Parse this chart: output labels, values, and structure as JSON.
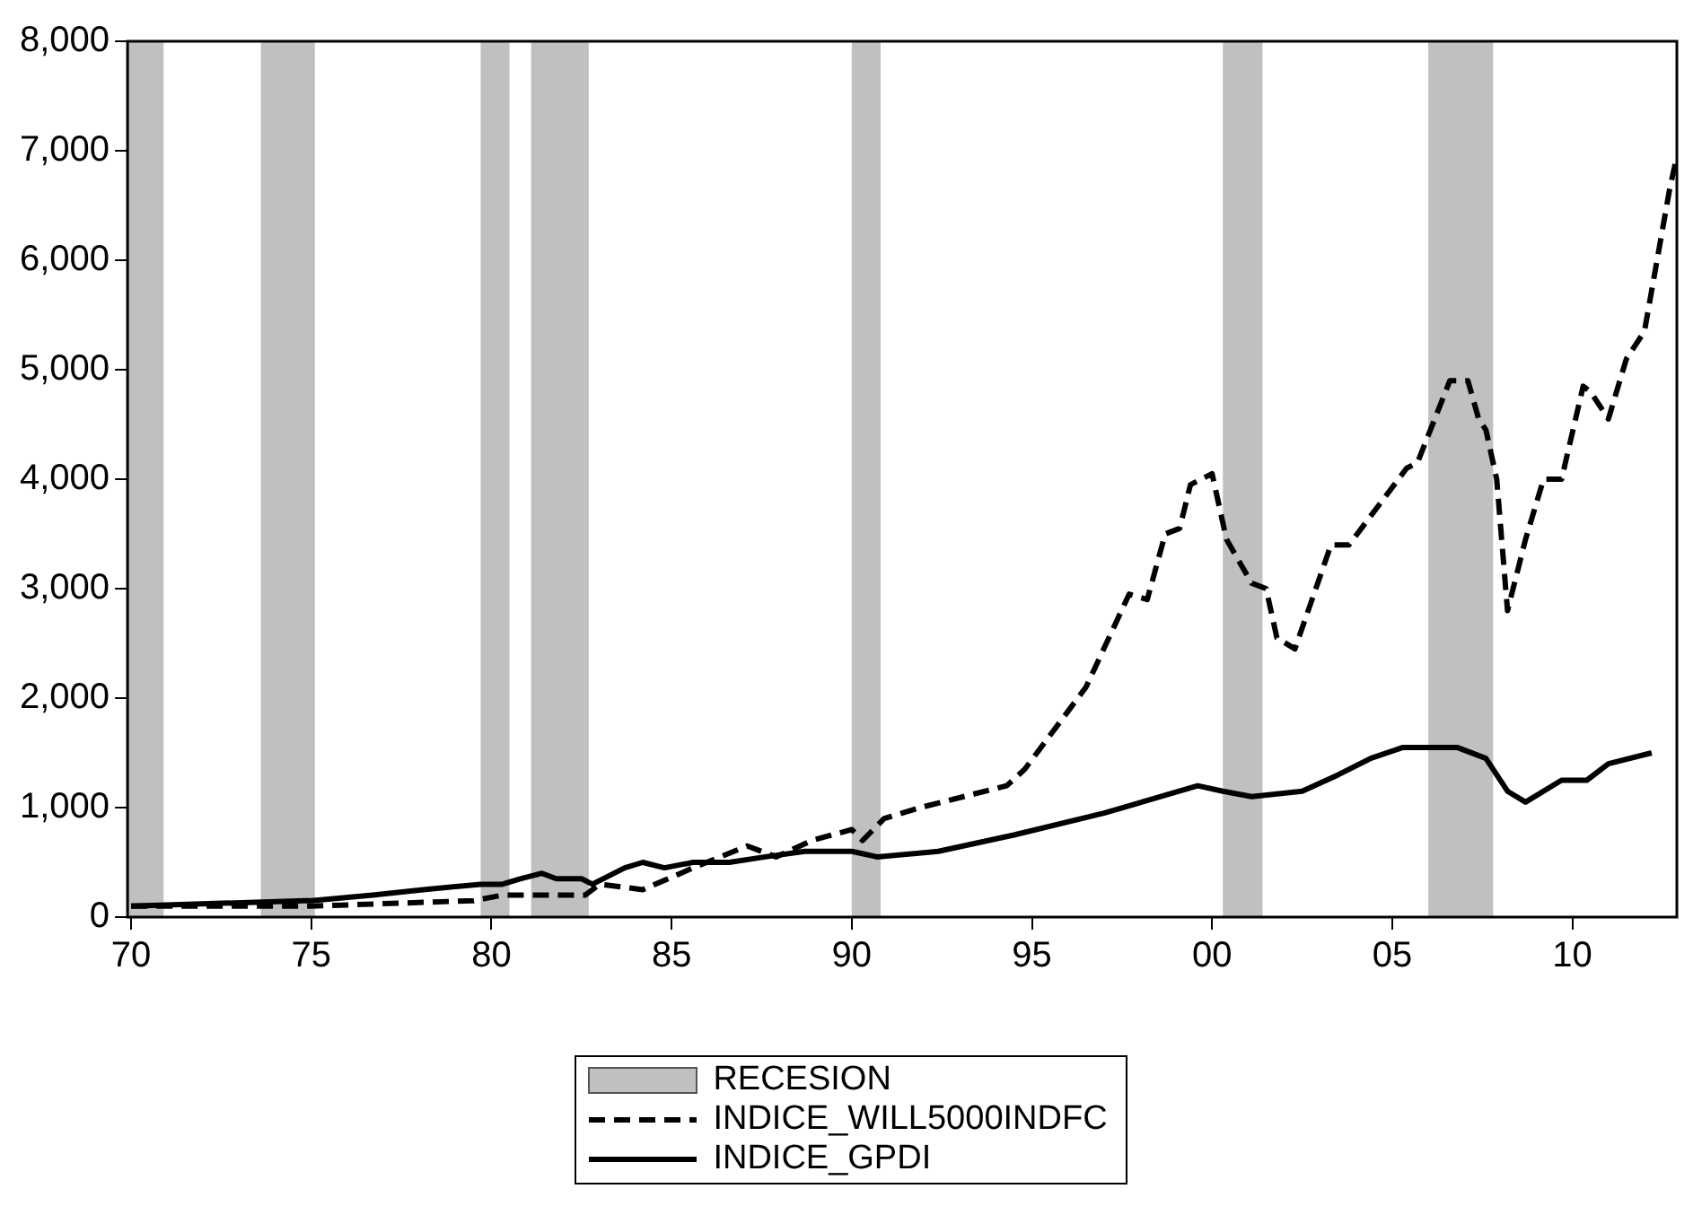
{
  "chart_data": {
    "type": "line",
    "xlim": [
      1969.9,
      2012.9
    ],
    "xticks": [
      {
        "value": 1970,
        "label": "70"
      },
      {
        "value": 1975,
        "label": "75"
      },
      {
        "value": 1980,
        "label": "80"
      },
      {
        "value": 1985,
        "label": "85"
      },
      {
        "value": 1990,
        "label": "90"
      },
      {
        "value": 1995,
        "label": "95"
      },
      {
        "value": 2000,
        "label": "00"
      },
      {
        "value": 2005,
        "label": "05"
      },
      {
        "value": 2010,
        "label": "10"
      }
    ],
    "ylim": [
      0,
      8000
    ],
    "yticks": [
      {
        "value": 0,
        "label": "0"
      },
      {
        "value": 1000,
        "label": "1,000"
      },
      {
        "value": 2000,
        "label": "2,000"
      },
      {
        "value": 3000,
        "label": "3,000"
      },
      {
        "value": 4000,
        "label": "4,000"
      },
      {
        "value": 5000,
        "label": "5,000"
      },
      {
        "value": 6000,
        "label": "6,000"
      },
      {
        "value": 7000,
        "label": "7,000"
      },
      {
        "value": 8000,
        "label": "8,000"
      }
    ],
    "grid": false,
    "legend": "bottom",
    "bands": [
      {
        "axis": "x",
        "from": 1969.9,
        "to": 1970.9,
        "label": "RECESION",
        "color": "#c0c0c0"
      },
      {
        "axis": "x",
        "from": 1973.6,
        "to": 1975.1,
        "color": "#c0c0c0"
      },
      {
        "axis": "x",
        "from": 1979.7,
        "to": 1980.5,
        "color": "#c0c0c0"
      },
      {
        "axis": "x",
        "from": 1981.1,
        "to": 1982.7,
        "color": "#c0c0c0"
      },
      {
        "axis": "x",
        "from": 1990.0,
        "to": 1990.8,
        "color": "#c0c0c0"
      },
      {
        "axis": "x",
        "from": 2000.3,
        "to": 2001.4,
        "color": "#c0c0c0"
      },
      {
        "axis": "x",
        "from": 2006.0,
        "to": 2007.8,
        "color": "#c0c0c0"
      }
    ],
    "series": [
      {
        "name": "INDICE_WILL5000INDFC",
        "color": "#000000",
        "line_style": "dashed",
        "marker": "none",
        "x": [
          1970,
          1974.8,
          1975,
          1979.5,
          1980.3,
          1982.6,
          1983,
          1984.2,
          1985.6,
          1987.1,
          1987.9,
          1988.9,
          1990,
          1990.3,
          1990.9,
          1991.9,
          1994.3,
          1994.8,
          1996.5,
          1997.7,
          1998.2,
          1998.7,
          1999.1,
          1999.4,
          2000,
          2000.4,
          2001.1,
          2001.5,
          2001.8,
          2002.3,
          2003.3,
          2003.8,
          2005.4,
          2005.7,
          2006.6,
          2007.1,
          2007.4,
          2007.6,
          2007.9,
          2008.2,
          2008.7,
          2009.2,
          2009.7,
          2010.3,
          2010.5,
          2011,
          2011.5,
          2012,
          2012.7,
          2012.9
        ],
        "values": [
          100,
          100,
          100,
          150,
          200,
          200,
          300,
          250,
          450,
          650,
          550,
          700,
          800,
          700,
          900,
          1000,
          1200,
          1350,
          2100,
          2950,
          2900,
          3500,
          3550,
          3950,
          4050,
          3450,
          3050,
          3000,
          2550,
          2450,
          3400,
          3400,
          4100,
          4150,
          4900,
          4900,
          4550,
          4450,
          4000,
          2800,
          3450,
          4000,
          4000,
          4850,
          4800,
          4550,
          5100,
          5350,
          6650,
          6950
        ]
      },
      {
        "name": "INDICE_GPDI",
        "color": "#000000",
        "line_style": "solid",
        "marker": "none",
        "x": [
          1970,
          1974.8,
          1975,
          1976.7,
          1978.1,
          1979.7,
          1980.3,
          1980.8,
          1981.4,
          1981.8,
          1982.5,
          1982.8,
          1983.7,
          1984.2,
          1984.8,
          1985.6,
          1986.6,
          1987.6,
          1988.7,
          1990,
          1990.7,
          1992.4,
          1994.5,
          1997,
          1999.6,
          2000.3,
          2001.1,
          2002.5,
          2003.5,
          2004.4,
          2005.3,
          2006.3,
          2006.8,
          2007.6,
          2008.2,
          2008.7,
          2009.7,
          2010.4,
          2011,
          2012.2
        ],
        "values": [
          100,
          150,
          150,
          200,
          250,
          300,
          300,
          350,
          400,
          350,
          350,
          300,
          450,
          500,
          450,
          500,
          500,
          550,
          600,
          600,
          550,
          600,
          750,
          950,
          1200,
          1150,
          1100,
          1150,
          1300,
          1450,
          1550,
          1550,
          1550,
          1450,
          1150,
          1050,
          1250,
          1250,
          1400,
          1500
        ]
      }
    ]
  }
}
